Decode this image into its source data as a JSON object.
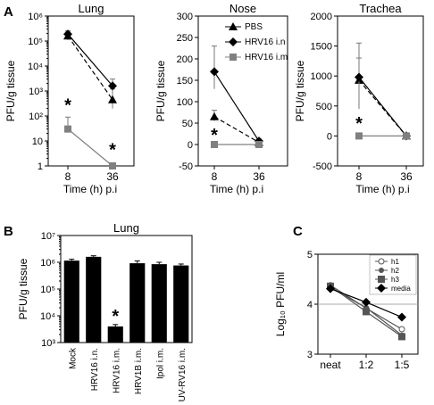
{
  "panels": [
    {
      "letter": "A",
      "panel_id": "A"
    },
    {
      "letter": "B",
      "panel_id": "B"
    },
    {
      "letter": "C",
      "panel_id": "C"
    }
  ],
  "chart_data": [
    {
      "id": "A-lung",
      "panel": "A",
      "type": "line",
      "title": "Lung",
      "xlabel": "Time (h) p.i",
      "ylabel": "PFU/g tissue",
      "yscale": "log",
      "ylim": [
        1,
        1000000
      ],
      "ytick_values": [
        1,
        10,
        100,
        1000,
        10000,
        100000,
        1000000
      ],
      "ytick_labels": [
        "1",
        "10",
        "10²",
        "10³",
        "10⁴",
        "10⁵",
        "10⁶"
      ],
      "categories": [
        "8",
        "36"
      ],
      "series": [
        {
          "key": "PBS",
          "values": [
            160000,
            450
          ],
          "err": [
            [
              110000,
              230000
            ],
            [
              200,
              1200
            ]
          ],
          "marker": "triangle",
          "line": "dashed",
          "color": "#000000"
        },
        {
          "key": "HRV16 i.n",
          "values": [
            190000,
            1600
          ],
          "err": [
            [
              140000,
              260000
            ],
            [
              800,
              3000
            ]
          ],
          "marker": "diamond",
          "line": "solid",
          "color": "#000000"
        },
        {
          "key": "HRV16 i.m",
          "values": [
            30,
            1
          ],
          "err": [
            [
              30,
              90
            ],
            [
              1,
              1
            ]
          ],
          "marker": "square",
          "line": "solid",
          "color": "#808080"
        }
      ],
      "annotations": [
        {
          "text": "*",
          "category": "8",
          "y": 300
        },
        {
          "text": "*",
          "category": "36",
          "y": 5
        }
      ]
    },
    {
      "id": "A-nose",
      "panel": "A",
      "type": "line",
      "title": "Nose",
      "xlabel": "Time (h) p.i",
      "ylabel": "PFU/g tissue",
      "ylim": [
        -50,
        300
      ],
      "ytick_values": [
        -50,
        0,
        50,
        100,
        150,
        200,
        250,
        300
      ],
      "categories": [
        "8",
        "36"
      ],
      "series": [
        {
          "key": "PBS",
          "name": "PBS",
          "values": [
            65,
            5
          ],
          "err": [
            [
              55,
              80
            ],
            [
              0,
              10
            ]
          ],
          "marker": "triangle",
          "line": "dashed",
          "color": "#000000"
        },
        {
          "key": "HRV16 i.n",
          "name": "HRV16 i.n",
          "values": [
            170,
            8
          ],
          "err": [
            [
              130,
              230
            ],
            [
              3,
              13
            ]
          ],
          "marker": "diamond",
          "line": "solid",
          "color": "#000000"
        },
        {
          "key": "HRV16 i.m",
          "name": "HRV16 i.m",
          "values": [
            0,
            0
          ],
          "err": [
            [
              0,
              0
            ],
            [
              0,
              0
            ]
          ],
          "marker": "square",
          "line": "solid",
          "color": "#808080"
        }
      ],
      "legend": "top-right",
      "annotations": [
        {
          "text": "*",
          "category": "8",
          "y": 25
        }
      ]
    },
    {
      "id": "A-trachea",
      "panel": "A",
      "type": "line",
      "title": "Trachea",
      "xlabel": "Time (h) p.i",
      "ylabel": "PFU/g tissue",
      "ylim": [
        -500,
        2000
      ],
      "ytick_values": [
        -500,
        0,
        500,
        1000,
        1500,
        2000
      ],
      "categories": [
        "8",
        "36"
      ],
      "series": [
        {
          "key": "PBS",
          "values": [
            930,
            0
          ],
          "err": [
            [
              600,
              1300
            ],
            [
              0,
              0
            ]
          ],
          "marker": "triangle",
          "line": "dashed",
          "color": "#000000"
        },
        {
          "key": "HRV16 i.n",
          "values": [
            980,
            0
          ],
          "err": [
            [
              450,
              1550
            ],
            [
              0,
              0
            ]
          ],
          "marker": "diamond",
          "line": "solid",
          "color": "#000000"
        },
        {
          "key": "HRV16 i.m",
          "values": [
            0,
            0
          ],
          "err": [
            [
              0,
              0
            ],
            [
              0,
              0
            ]
          ],
          "marker": "square",
          "line": "solid",
          "color": "#808080"
        }
      ],
      "annotations": [
        {
          "text": "*",
          "category": "8",
          "y": 230
        }
      ]
    },
    {
      "id": "B-lung",
      "panel": "B",
      "type": "bar",
      "title": "Lung",
      "ylabel": "PFU/g tissue",
      "yscale": "log",
      "ylim": [
        1000,
        10000000
      ],
      "ytick_values": [
        1000,
        10000,
        100000,
        1000000,
        10000000
      ],
      "ytick_labels": [
        "10³",
        "10⁴",
        "10⁵",
        "10⁶",
        "10⁷"
      ],
      "categories": [
        "Mock",
        "HRV16 i.n.",
        "HRV16 i.m.",
        "HRV1B i.m.",
        "Ipol i.m.",
        "UV-RV16 i.m."
      ],
      "values": [
        1150000,
        1600000,
        4000,
        920000,
        850000,
        760000
      ],
      "err_upper": [
        1300000,
        1750000,
        4700,
        1120000,
        1000000,
        860000
      ],
      "bar_color": "#000000",
      "annotations": [
        {
          "text": "*",
          "category": "HRV16 i.m.",
          "y": 11000
        }
      ]
    },
    {
      "id": "C",
      "panel": "C",
      "type": "line",
      "ylabel": "Log₁₀ PFU/ml",
      "ylim": [
        3,
        5
      ],
      "ytick_values": [
        3,
        4,
        5
      ],
      "reference_line": 4,
      "categories": [
        "neat",
        "1:2",
        "1:5"
      ],
      "series": [
        {
          "name": "h1",
          "values": [
            4.38,
            3.92,
            3.5
          ],
          "marker": "circle-open",
          "color": "#555555"
        },
        {
          "name": "h2",
          "values": [
            4.33,
            3.93,
            3.38
          ],
          "marker": "circle",
          "color": "#555555"
        },
        {
          "name": "h3",
          "values": [
            4.36,
            3.85,
            3.35
          ],
          "marker": "square",
          "color": "#555555"
        },
        {
          "name": "media",
          "values": [
            4.31,
            4.04,
            3.74
          ],
          "marker": "diamond",
          "color": "#000000"
        }
      ],
      "legend": "top-right"
    }
  ]
}
